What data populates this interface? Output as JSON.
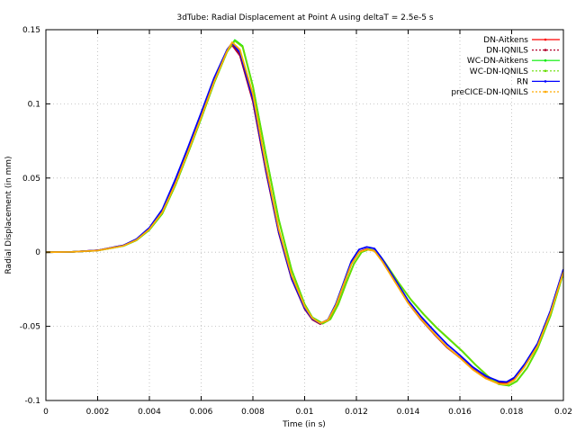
{
  "chart_data": {
    "type": "line",
    "title": "3dTube: Radial Displacement at Point A using deltaT = 2.5e-5 s",
    "xlabel": "Time (in s)",
    "ylabel": "Radial Displacement (in mm)",
    "xlim": [
      0,
      0.02
    ],
    "ylim": [
      -0.1,
      0.15
    ],
    "xticks": [
      0,
      0.002,
      0.004,
      0.006,
      0.008,
      0.01,
      0.012,
      0.014,
      0.016,
      0.018,
      0.02
    ],
    "xtick_labels": [
      "0",
      "0.002",
      "0.004",
      "0.006",
      "0.008",
      "0.01",
      "0.012",
      "0.014",
      "0.016",
      "0.018",
      "0.02"
    ],
    "yticks": [
      -0.1,
      -0.05,
      0,
      0.05,
      0.1,
      0.15
    ],
    "ytick_labels": [
      "-0.1",
      "-0.05",
      "0",
      "0.05",
      "0.1",
      "0.15"
    ],
    "grid": true,
    "legend_position": "top-right",
    "series": [
      {
        "name": "DN-Aitkens",
        "color": "#ff0000",
        "x": [
          0,
          0.001,
          0.002,
          0.003,
          0.0035,
          0.004,
          0.0045,
          0.005,
          0.0055,
          0.006,
          0.0065,
          0.007,
          0.0072,
          0.0075,
          0.008,
          0.0085,
          0.009,
          0.0095,
          0.01,
          0.0103,
          0.0106,
          0.0109,
          0.0112,
          0.0115,
          0.0118,
          0.0121,
          0.0124,
          0.0127,
          0.013,
          0.0135,
          0.014,
          0.0145,
          0.015,
          0.0155,
          0.016,
          0.0165,
          0.017,
          0.0175,
          0.0178,
          0.0181,
          0.0185,
          0.019,
          0.0195,
          0.02
        ],
        "y": [
          0,
          0.0002,
          0.0012,
          0.0045,
          0.0085,
          0.016,
          0.028,
          0.048,
          0.07,
          0.093,
          0.117,
          0.136,
          0.14,
          0.133,
          0.102,
          0.055,
          0.013,
          -0.018,
          -0.038,
          -0.045,
          -0.048,
          -0.046,
          -0.036,
          -0.022,
          -0.008,
          0.0,
          0.002,
          0.001,
          -0.006,
          -0.02,
          -0.034,
          -0.045,
          -0.055,
          -0.064,
          -0.071,
          -0.079,
          -0.085,
          -0.088,
          -0.088,
          -0.085,
          -0.076,
          -0.062,
          -0.04,
          -0.012
        ]
      },
      {
        "name": "DN-IQNILS",
        "color": "#b0002a",
        "x": [
          0,
          0.001,
          0.002,
          0.003,
          0.0035,
          0.004,
          0.0045,
          0.005,
          0.0055,
          0.006,
          0.0065,
          0.007,
          0.0072,
          0.0075,
          0.008,
          0.0085,
          0.009,
          0.0095,
          0.01,
          0.0103,
          0.0106,
          0.0109,
          0.0112,
          0.0115,
          0.0118,
          0.0121,
          0.0124,
          0.0127,
          0.013,
          0.0135,
          0.014,
          0.0145,
          0.015,
          0.0155,
          0.016,
          0.0165,
          0.017,
          0.0175,
          0.0178,
          0.0181,
          0.0185,
          0.019,
          0.0195,
          0.02
        ],
        "y": [
          0,
          0.0002,
          0.0012,
          0.0046,
          0.0087,
          0.0163,
          0.0285,
          0.0485,
          0.0705,
          0.0935,
          0.1168,
          0.1355,
          0.1395,
          0.1325,
          0.1015,
          0.0548,
          0.0128,
          -0.0182,
          -0.0383,
          -0.0455,
          -0.0485,
          -0.0462,
          -0.0362,
          -0.0222,
          -0.0082,
          0.0002,
          0.0022,
          0.0012,
          -0.0058,
          -0.0198,
          -0.0342,
          -0.0455,
          -0.0552,
          -0.0642,
          -0.0712,
          -0.0788,
          -0.0848,
          -0.0878,
          -0.0878,
          -0.0848,
          -0.0758,
          -0.0618,
          -0.0398,
          -0.0118
        ]
      },
      {
        "name": "WC-DN-Aitkens",
        "color": "#00ee00",
        "x": [
          0,
          0.001,
          0.002,
          0.003,
          0.0035,
          0.004,
          0.0045,
          0.005,
          0.0055,
          0.006,
          0.0065,
          0.007,
          0.0073,
          0.0076,
          0.008,
          0.0085,
          0.009,
          0.0095,
          0.01,
          0.0103,
          0.0107,
          0.011,
          0.0113,
          0.0116,
          0.0119,
          0.0122,
          0.0125,
          0.0128,
          0.0131,
          0.0136,
          0.0141,
          0.0146,
          0.0151,
          0.0156,
          0.0161,
          0.0166,
          0.0171,
          0.0175,
          0.0179,
          0.0182,
          0.0186,
          0.019,
          0.0195,
          0.02
        ],
        "y": [
          0,
          0.0002,
          0.0011,
          0.0042,
          0.008,
          0.015,
          0.026,
          0.045,
          0.067,
          0.09,
          0.114,
          0.135,
          0.143,
          0.139,
          0.112,
          0.066,
          0.022,
          -0.012,
          -0.035,
          -0.044,
          -0.048,
          -0.045,
          -0.035,
          -0.021,
          -0.008,
          0.0,
          0.002,
          0.0,
          -0.007,
          -0.02,
          -0.032,
          -0.042,
          -0.051,
          -0.059,
          -0.067,
          -0.076,
          -0.084,
          -0.089,
          -0.09,
          -0.087,
          -0.078,
          -0.065,
          -0.043,
          -0.014
        ]
      },
      {
        "name": "WC-DN-IQNILS",
        "color": "#66dd00",
        "x": [
          0,
          0.001,
          0.002,
          0.003,
          0.0035,
          0.004,
          0.0045,
          0.005,
          0.0055,
          0.006,
          0.0065,
          0.007,
          0.0073,
          0.0076,
          0.008,
          0.0085,
          0.009,
          0.0095,
          0.01,
          0.0103,
          0.0107,
          0.011,
          0.0113,
          0.0116,
          0.0119,
          0.0122,
          0.0125,
          0.0128,
          0.0131,
          0.0136,
          0.0141,
          0.0146,
          0.0151,
          0.0156,
          0.0161,
          0.0166,
          0.0171,
          0.0175,
          0.0179,
          0.0182,
          0.0186,
          0.019,
          0.0195,
          0.02
        ],
        "y": [
          0,
          0.0002,
          0.0011,
          0.0043,
          0.0081,
          0.0152,
          0.0262,
          0.0452,
          0.0672,
          0.0902,
          0.1142,
          0.1352,
          0.1425,
          0.1385,
          0.1115,
          0.0655,
          0.0215,
          -0.0122,
          -0.0352,
          -0.0442,
          -0.0482,
          -0.0452,
          -0.0352,
          -0.0212,
          -0.0082,
          0.0001,
          0.0021,
          0.0001,
          -0.0068,
          -0.0198,
          -0.0318,
          -0.0418,
          -0.0508,
          -0.0588,
          -0.0668,
          -0.0758,
          -0.0838,
          -0.0888,
          -0.0898,
          -0.0868,
          -0.0778,
          -0.0648,
          -0.0428,
          -0.0138
        ]
      },
      {
        "name": "RN",
        "color": "#0000ff",
        "x": [
          0,
          0.001,
          0.002,
          0.003,
          0.0035,
          0.004,
          0.0045,
          0.005,
          0.0055,
          0.006,
          0.0065,
          0.007,
          0.0072,
          0.0075,
          0.008,
          0.0085,
          0.009,
          0.0095,
          0.01,
          0.0103,
          0.0106,
          0.0109,
          0.0112,
          0.0115,
          0.0118,
          0.0121,
          0.0124,
          0.0127,
          0.013,
          0.0135,
          0.014,
          0.0145,
          0.015,
          0.0155,
          0.016,
          0.0165,
          0.017,
          0.0175,
          0.0178,
          0.0181,
          0.0185,
          0.019,
          0.0195,
          0.02
        ],
        "y": [
          0,
          0.0002,
          0.0012,
          0.0046,
          0.0088,
          0.0165,
          0.0288,
          0.049,
          0.071,
          0.094,
          0.1175,
          0.1365,
          0.141,
          0.1345,
          0.1035,
          0.056,
          0.0135,
          -0.0178,
          -0.0378,
          -0.045,
          -0.048,
          -0.0455,
          -0.0352,
          -0.0208,
          -0.0062,
          0.0018,
          0.0035,
          0.0025,
          -0.0045,
          -0.0185,
          -0.0325,
          -0.0435,
          -0.053,
          -0.062,
          -0.0695,
          -0.0775,
          -0.0835,
          -0.087,
          -0.0875,
          -0.0845,
          -0.0755,
          -0.0615,
          -0.0395,
          -0.0115
        ]
      },
      {
        "name": "preCICE-DN-IQNILS",
        "color": "#ffaa00",
        "x": [
          0,
          0.001,
          0.002,
          0.003,
          0.0035,
          0.004,
          0.0045,
          0.005,
          0.0055,
          0.006,
          0.0065,
          0.007,
          0.0072,
          0.0075,
          0.008,
          0.0085,
          0.009,
          0.0095,
          0.01,
          0.0103,
          0.0106,
          0.0109,
          0.0112,
          0.0115,
          0.0118,
          0.0121,
          0.0124,
          0.0127,
          0.013,
          0.0135,
          0.014,
          0.0145,
          0.015,
          0.0155,
          0.016,
          0.0165,
          0.017,
          0.0175,
          0.0178,
          0.0181,
          0.0185,
          0.019,
          0.0195,
          0.02
        ],
        "y": [
          0,
          0.0002,
          0.0011,
          0.0043,
          0.0082,
          0.0155,
          0.027,
          0.046,
          0.068,
          0.091,
          0.115,
          0.1355,
          0.1415,
          0.1365,
          0.1065,
          0.0585,
          0.0155,
          -0.0158,
          -0.0365,
          -0.0445,
          -0.0478,
          -0.0458,
          -0.0362,
          -0.0222,
          -0.0082,
          0.0,
          0.0018,
          0.0008,
          -0.0062,
          -0.0202,
          -0.0342,
          -0.0452,
          -0.0548,
          -0.0638,
          -0.0712,
          -0.0792,
          -0.0852,
          -0.0888,
          -0.0892,
          -0.0862,
          -0.0772,
          -0.0632,
          -0.0412,
          -0.0132
        ]
      }
    ]
  }
}
